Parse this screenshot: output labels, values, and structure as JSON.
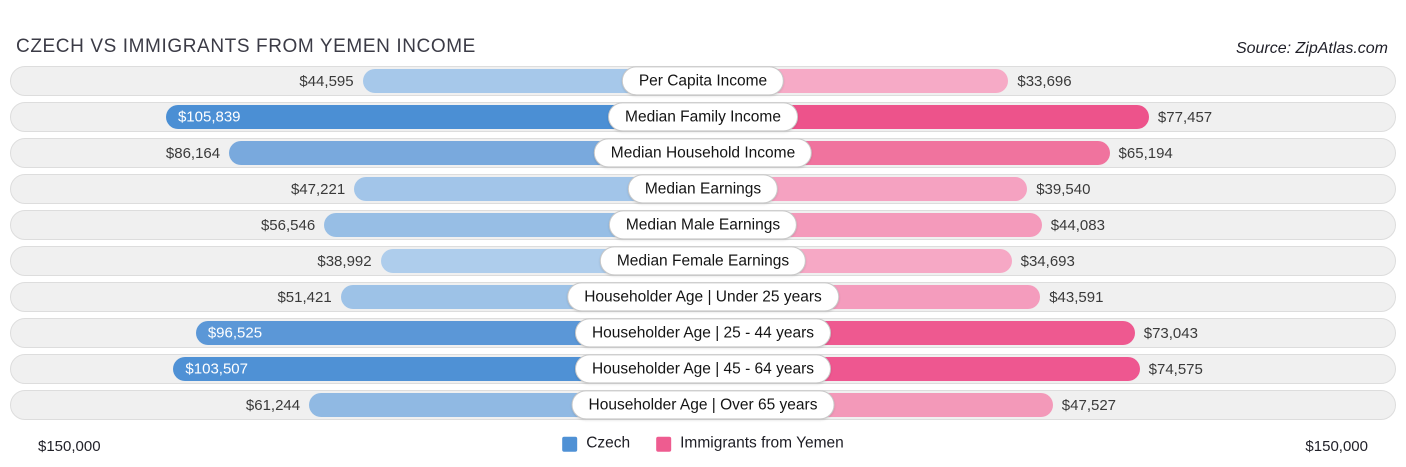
{
  "header": {
    "title": "CZECH VS IMMIGRANTS FROM YEMEN INCOME",
    "source": "Source: ZipAtlas.com"
  },
  "chart_data": {
    "type": "bar",
    "orientation": "diverging-horizontal",
    "title": "CZECH VS IMMIGRANTS FROM YEMEN INCOME",
    "categories": [
      "Per Capita Income",
      "Median Family Income",
      "Median Household Income",
      "Median Earnings",
      "Median Male Earnings",
      "Median Female Earnings",
      "Householder Age | Under 25 years",
      "Householder Age | 25 - 44 years",
      "Householder Age | 45 - 64 years",
      "Householder Age | Over 65 years"
    ],
    "series": [
      {
        "name": "Czech",
        "side": "left",
        "legend_color": "#4f91d5",
        "values": [
          44595,
          105839,
          86164,
          47221,
          56546,
          38992,
          51421,
          96525,
          103507,
          61244
        ],
        "labels": [
          "$44,595",
          "$105,839",
          "$86,164",
          "$47,221",
          "$56,546",
          "$38,992",
          "$51,421",
          "$96,525",
          "$103,507",
          "$61,244"
        ],
        "colors": [
          "#a6c8ea",
          "#4b8fd4",
          "#79a9dd",
          "#a2c5e9",
          "#97bee5",
          "#aecdec",
          "#9dc2e7",
          "#5b97d7",
          "#4f91d5",
          "#90b9e3"
        ],
        "label_inside": [
          false,
          true,
          false,
          false,
          false,
          false,
          false,
          true,
          true,
          false
        ]
      },
      {
        "name": "Immigrants from Yemen",
        "side": "right",
        "legend_color": "#ee5c90",
        "values": [
          33696,
          77457,
          65194,
          39540,
          44083,
          34693,
          43591,
          73043,
          74575,
          47527
        ],
        "labels": [
          "$33,696",
          "$77,457",
          "$65,194",
          "$39,540",
          "$44,083",
          "$34,693",
          "$43,591",
          "$73,043",
          "$74,575",
          "$47,527"
        ],
        "colors": [
          "#f6aac6",
          "#ed538b",
          "#f0739e",
          "#f5a2c1",
          "#f49abb",
          "#f6a8c5",
          "#f49cbd",
          "#ee5990",
          "#ee5790",
          "#f399b9"
        ],
        "label_inside": [
          false,
          false,
          false,
          false,
          false,
          false,
          false,
          false,
          false,
          false
        ]
      }
    ],
    "xlim": [
      0,
      150000
    ],
    "axis_labels": {
      "left": "$150,000",
      "right": "$150,000"
    },
    "legend_position": "bottom-center",
    "grid": false,
    "bar_scale": {
      "base_pct": 28.5,
      "span_pct": 69.6
    }
  }
}
